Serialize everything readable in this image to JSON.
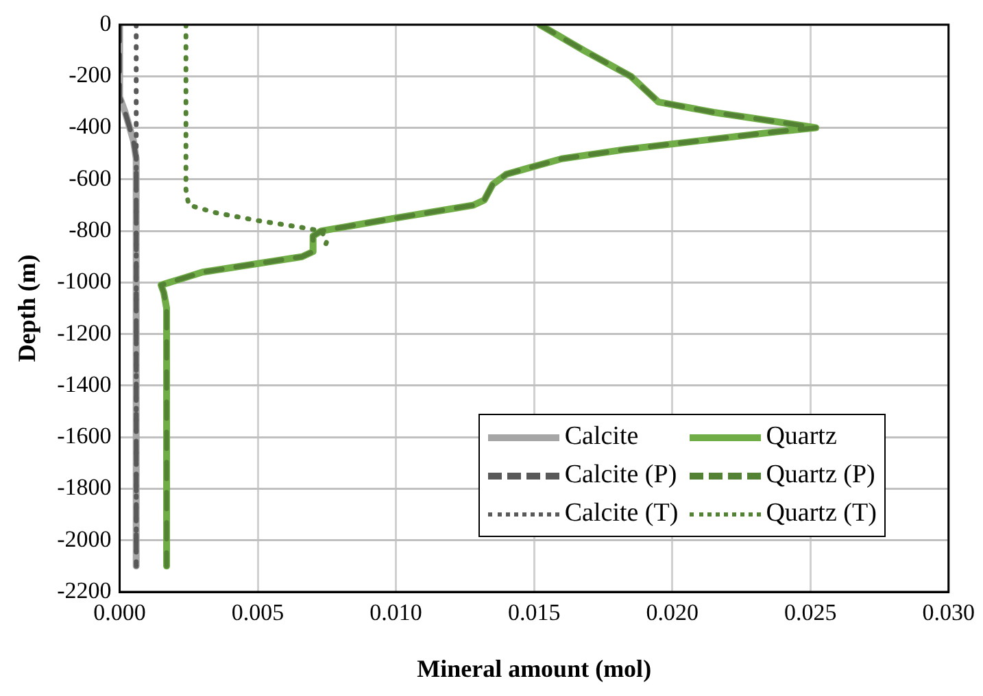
{
  "chart_data": {
    "type": "line",
    "xlabel": "Mineral amount (mol)",
    "ylabel": "Depth (m)",
    "xlim": [
      0,
      0.03
    ],
    "xticks": [
      {
        "value": 0,
        "label": "0.000"
      },
      {
        "value": 0.005,
        "label": "0.005"
      },
      {
        "value": 0.01,
        "label": "0.010"
      },
      {
        "value": 0.015,
        "label": "0.015"
      },
      {
        "value": 0.02,
        "label": "0.020"
      },
      {
        "value": 0.025,
        "label": "0.025"
      },
      {
        "value": 0.03,
        "label": "0.030"
      }
    ],
    "ylim": [
      -2200,
      0
    ],
    "yticks": [
      0,
      -200,
      -400,
      -600,
      -800,
      -1000,
      -1200,
      -1400,
      -1600,
      -1800,
      -2000,
      -2200
    ],
    "grid": true,
    "legend": "bottom right",
    "marker": "none",
    "series": [
      {
        "name": "Calcite",
        "color": "#a6a6a6",
        "line_style": "solid",
        "x": [
          0,
          0,
          0.0002,
          0.0005,
          0.0006,
          0.0006
        ],
        "values": [
          0,
          -280,
          -340,
          -450,
          -520,
          -2100
        ]
      },
      {
        "name": "Quartz",
        "color": "#70ad47",
        "line_style": "solid",
        "x": [
          0.0152,
          0.0168,
          0.0185,
          0.0189,
          0.0195,
          0.0215,
          0.024,
          0.0252,
          0.0238,
          0.021,
          0.0183,
          0.016,
          0.014,
          0.0135,
          0.0132,
          0.0128,
          0.01,
          0.0073,
          0.007,
          0.007,
          0.0066,
          0.003,
          0.0015,
          0.0016,
          0.0017,
          0.0017
        ],
        "values": [
          0,
          -100,
          -200,
          -240,
          -300,
          -340,
          -380,
          -400,
          -415,
          -450,
          -484,
          -520,
          -580,
          -620,
          -680,
          -700,
          -750,
          -800,
          -820,
          -880,
          -900,
          -960,
          -1010,
          -1040,
          -1100,
          -2100
        ]
      },
      {
        "name": "Calcite (P)",
        "color": "#595959",
        "line_style": "dashed",
        "x": [
          0,
          0,
          0.0002,
          0.0005,
          0.0006,
          0.0006
        ],
        "values": [
          0,
          -280,
          -340,
          -450,
          -520,
          -2100
        ]
      },
      {
        "name": "Quartz (P)",
        "color": "#548235",
        "line_style": "dashed",
        "x": [
          0.0152,
          0.0168,
          0.0185,
          0.0189,
          0.0195,
          0.0215,
          0.024,
          0.0252,
          0.0238,
          0.021,
          0.0183,
          0.016,
          0.014,
          0.0135,
          0.0132,
          0.0128,
          0.01,
          0.0073,
          0.007,
          0.007,
          0.0066,
          0.003,
          0.0015,
          0.0016,
          0.0017,
          0.0017
        ],
        "values": [
          0,
          -100,
          -200,
          -240,
          -300,
          -340,
          -380,
          -400,
          -415,
          -450,
          -484,
          -520,
          -580,
          -620,
          -680,
          -700,
          -750,
          -800,
          -820,
          -880,
          -900,
          -960,
          -1010,
          -1040,
          -1100,
          -2100
        ]
      },
      {
        "name": "Calcite (T)",
        "color": "#595959",
        "line_style": "dotted",
        "x": [
          0.0006,
          0.0006
        ],
        "values": [
          0,
          -2100
        ]
      },
      {
        "name": "Quartz (T)",
        "color": "#548235",
        "line_style": "dotted",
        "x": [
          0.0024,
          0.0024,
          0.0025,
          0.0035,
          0.005,
          0.0065,
          0.0073,
          0.0075,
          0.0074
        ],
        "values": [
          0,
          -640,
          -700,
          -730,
          -760,
          -785,
          -800,
          -840,
          -870
        ]
      }
    ]
  }
}
